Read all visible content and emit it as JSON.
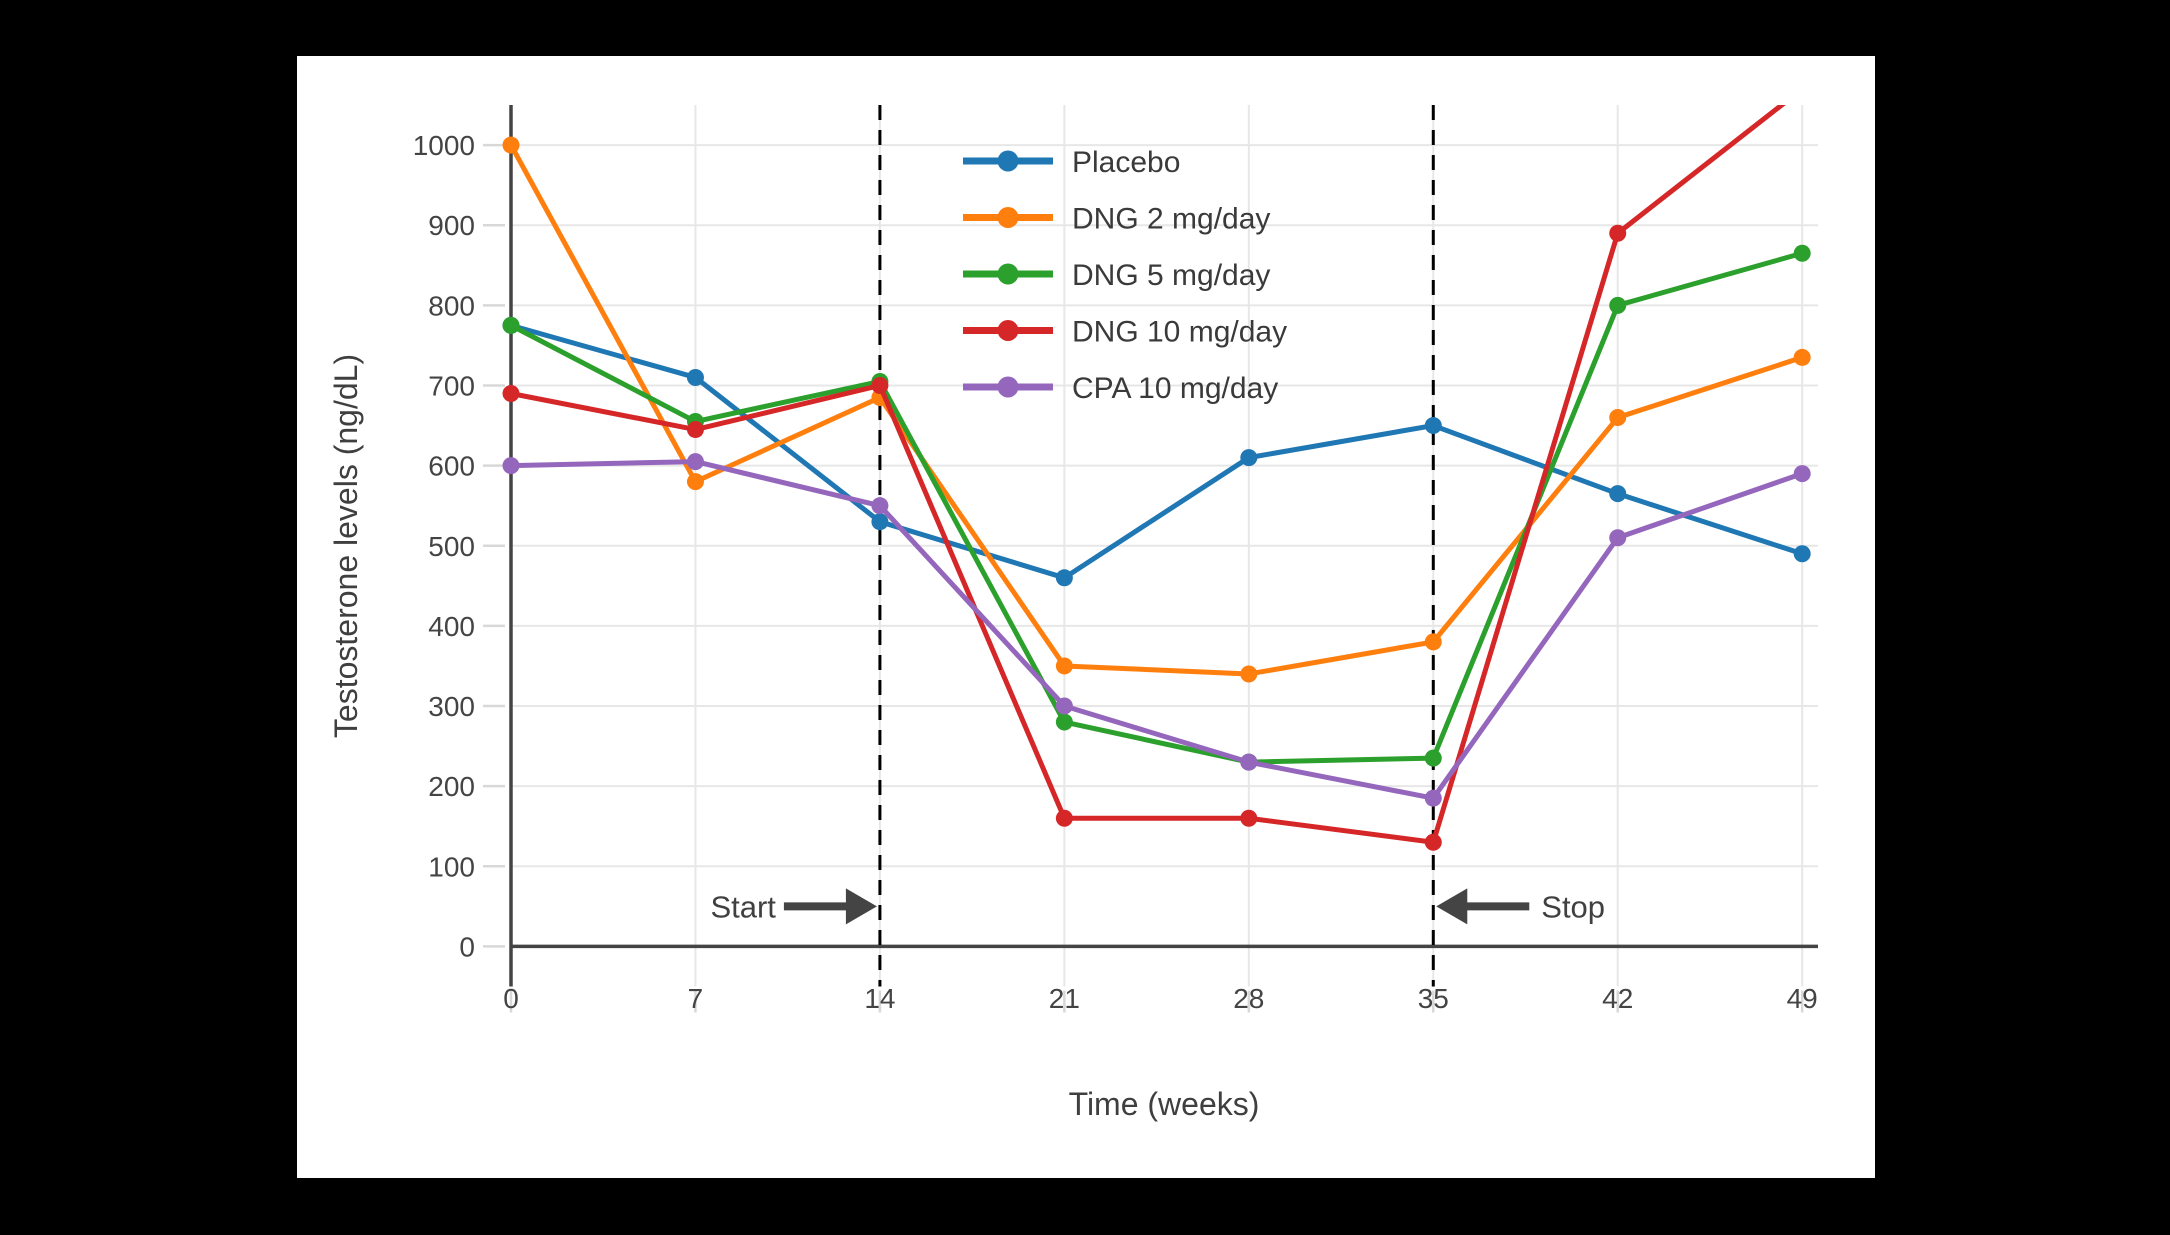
{
  "figure": {
    "page_background": "#000000",
    "card_background": "#ffffff",
    "text_color": "#3f3f3f",
    "grid_color": "#e7e7e7",
    "tick_color": "#d8d8d8",
    "spine_color": "#444444",
    "guide_line_color": "#000000"
  },
  "chart_data": {
    "type": "line",
    "title": "",
    "xlabel": "Time (weeks)",
    "ylabel": "Testosterone levels (ng/dL)",
    "x": [
      0,
      7,
      14,
      21,
      28,
      35,
      42,
      49
    ],
    "xticks": [
      0,
      7,
      14,
      21,
      28,
      35,
      42,
      49
    ],
    "yticks": [
      0,
      100,
      200,
      300,
      400,
      500,
      600,
      700,
      800,
      900,
      1000
    ],
    "xlim": [
      0,
      49.6
    ],
    "ylim": [
      -50,
      1050
    ],
    "grid": true,
    "legend_position": "inside-top-center",
    "series": [
      {
        "name": "Placebo",
        "color": "#1f77b4",
        "values": [
          775,
          710,
          530,
          460,
          610,
          650,
          565,
          490
        ]
      },
      {
        "name": "DNG 2 mg/day",
        "color": "#ff7f0e",
        "values": [
          1000,
          580,
          685,
          350,
          340,
          380,
          660,
          735
        ]
      },
      {
        "name": "DNG 5 mg/day",
        "color": "#2ca02c",
        "values": [
          775,
          655,
          705,
          280,
          230,
          235,
          800,
          865
        ]
      },
      {
        "name": "DNG 10 mg/day",
        "color": "#d62728",
        "values": [
          690,
          645,
          700,
          160,
          160,
          130,
          890,
          1070
        ]
      },
      {
        "name": "CPA 10 mg/day",
        "color": "#9467bd",
        "values": [
          600,
          605,
          550,
          300,
          230,
          185,
          510,
          590
        ]
      }
    ],
    "annotations": [
      {
        "text": "Start",
        "arrow": "right",
        "x_week": 14,
        "y_value": 50
      },
      {
        "text": "Stop",
        "arrow": "left",
        "x_week": 35,
        "y_value": 50
      }
    ]
  }
}
